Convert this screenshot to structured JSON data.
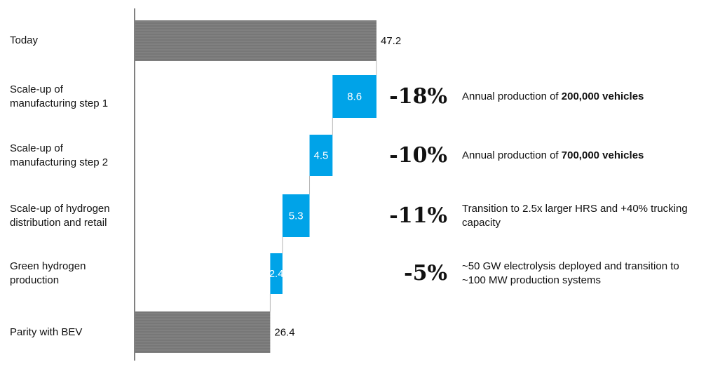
{
  "chart_data": {
    "type": "bar",
    "subtype": "waterfall",
    "orientation": "horizontal",
    "xlim": [
      0,
      47.2
    ],
    "colors": {
      "total": "#7f7f7f",
      "step": "#00a3e8"
    },
    "categories": [
      {
        "label_lines": [
          "Today"
        ],
        "kind": "total",
        "value": 47.2,
        "value_label": "47.2"
      },
      {
        "label_lines": [
          "Scale-up of",
          "manufacturing step 1"
        ],
        "kind": "step",
        "value": 8.6,
        "value_label": "8.6",
        "pct": "-18%",
        "note": [
          "Annual production of ",
          "200,000 vehicles",
          ""
        ]
      },
      {
        "label_lines": [
          "Scale-up of",
          "manufacturing step 2"
        ],
        "kind": "step",
        "value": 4.5,
        "value_label": "4.5",
        "pct": "-10%",
        "note": [
          "Annual production of ",
          "700,000 vehicles",
          ""
        ]
      },
      {
        "label_lines": [
          "Scale-up of hydrogen",
          "distribution and retail"
        ],
        "kind": "step",
        "value": 5.3,
        "value_label": "5.3",
        "pct": "-11%",
        "note": [
          "Transition to 2.5x larger HRS and +40% trucking capacity",
          "",
          ""
        ]
      },
      {
        "label_lines": [
          "Green hydrogen",
          "production"
        ],
        "kind": "step",
        "value": 2.4,
        "value_label": "2.4",
        "pct": "-5%",
        "note": [
          "~50 GW electrolysis deployed and transition to ~100 MW production systems",
          "",
          ""
        ]
      },
      {
        "label_lines": [
          "Parity with BEV"
        ],
        "kind": "total",
        "value": 26.4,
        "value_label": "26.4"
      }
    ]
  }
}
